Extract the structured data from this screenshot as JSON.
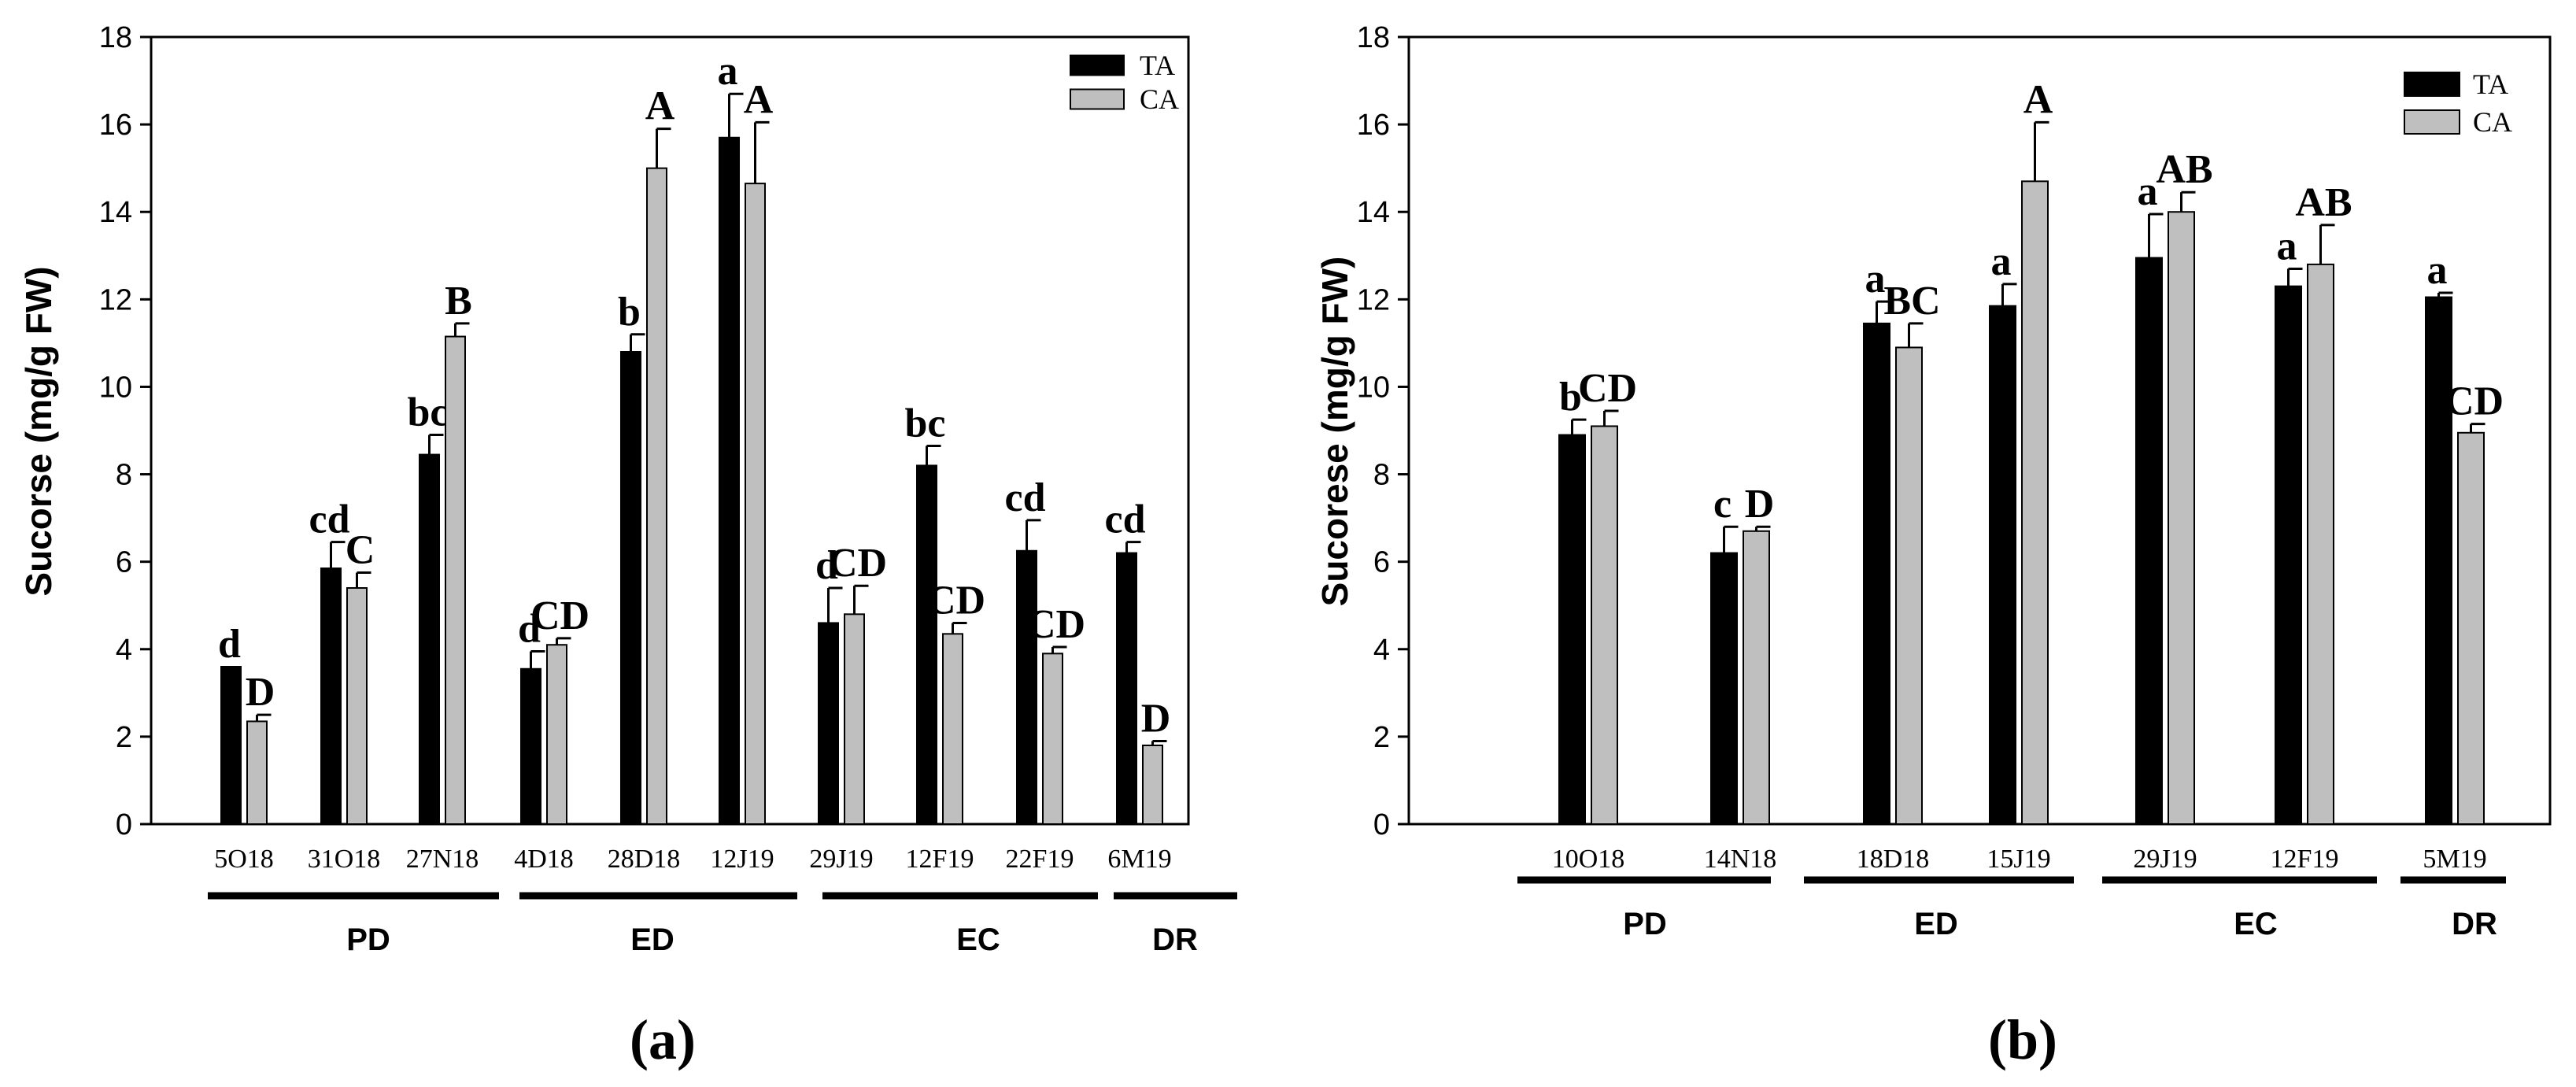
{
  "chart_data": [
    {
      "type": "bar",
      "panel_label": "(a)",
      "ylabel": "Sucorse (mg/g FW)",
      "xlabel": "",
      "ylim": [
        0,
        18
      ],
      "yticks": [
        0,
        2,
        4,
        6,
        8,
        10,
        12,
        14,
        16,
        18
      ],
      "grid": false,
      "legend_position": "top-right",
      "categories": [
        "5O18",
        "31O18",
        "27N18",
        "4D18",
        "28D18",
        "12J19",
        "29J19",
        "12F19",
        "22F19",
        "6M19"
      ],
      "series": [
        {
          "name": "TA",
          "color": "#000000",
          "values": [
            3.6,
            5.85,
            8.45,
            3.55,
            10.8,
            15.7,
            4.6,
            8.2,
            6.25,
            6.2
          ],
          "errors": [
            0.0,
            0.6,
            0.45,
            0.4,
            0.4,
            1.0,
            0.8,
            0.45,
            0.7,
            0.25
          ],
          "letters": [
            "d",
            "cd",
            "bc",
            "d",
            "b",
            "a",
            "d",
            "bc",
            "cd",
            "cd"
          ]
        },
        {
          "name": "CA",
          "color": "#bfbfbf",
          "values": [
            2.35,
            5.4,
            11.15,
            4.1,
            15.0,
            14.65,
            4.8,
            4.35,
            3.9,
            1.8
          ],
          "errors": [
            0.15,
            0.35,
            0.3,
            0.15,
            0.9,
            1.4,
            0.65,
            0.25,
            0.15,
            0.1
          ],
          "letters": [
            "D",
            "C",
            "B",
            "CD",
            "A",
            "A",
            "CD",
            "CD",
            "CD",
            "D"
          ]
        }
      ],
      "groups": [
        {
          "label": "PD",
          "categories": [
            "5O18",
            "31O18",
            "27N18"
          ]
        },
        {
          "label": "ED",
          "categories": [
            "4D18",
            "28D18",
            "12J19"
          ]
        },
        {
          "label": "EC",
          "categories": [
            "29J19",
            "12F19",
            "22F19"
          ]
        },
        {
          "label": "DR",
          "categories": [
            "6M19"
          ]
        }
      ]
    },
    {
      "type": "bar",
      "panel_label": "(b)",
      "ylabel": "Sucorese (mg/g FW)",
      "xlabel": "",
      "ylim": [
        0,
        18
      ],
      "yticks": [
        0,
        2,
        4,
        6,
        8,
        10,
        12,
        14,
        16,
        18
      ],
      "grid": false,
      "legend_position": "top-right",
      "categories": [
        "10O18",
        "14N18",
        "18D18",
        "15J19",
        "29J19",
        "12F19",
        "5M19"
      ],
      "series": [
        {
          "name": "TA",
          "color": "#000000",
          "values": [
            8.9,
            6.2,
            11.45,
            11.85,
            12.95,
            12.3,
            12.05
          ],
          "errors": [
            0.35,
            0.6,
            0.5,
            0.5,
            1.0,
            0.4,
            0.1
          ],
          "letters": [
            "b",
            "c",
            "a",
            "a",
            "a",
            "a",
            "a"
          ]
        },
        {
          "name": "CA",
          "color": "#bfbfbf",
          "values": [
            9.1,
            6.7,
            10.9,
            14.7,
            14.0,
            12.8,
            8.95
          ],
          "errors": [
            0.35,
            0.1,
            0.55,
            1.35,
            0.45,
            0.9,
            0.2
          ],
          "letters": [
            "CD",
            "D",
            "BC",
            "A",
            "AB",
            "AB",
            "CD"
          ]
        }
      ],
      "groups": [
        {
          "label": "PD",
          "categories": [
            "10O18",
            "14N18"
          ]
        },
        {
          "label": "ED",
          "categories": [
            "18D18",
            "15J19"
          ]
        },
        {
          "label": "EC",
          "categories": [
            "29J19",
            "12F19"
          ]
        },
        {
          "label": "DR",
          "categories": [
            "5M19"
          ]
        }
      ]
    }
  ]
}
